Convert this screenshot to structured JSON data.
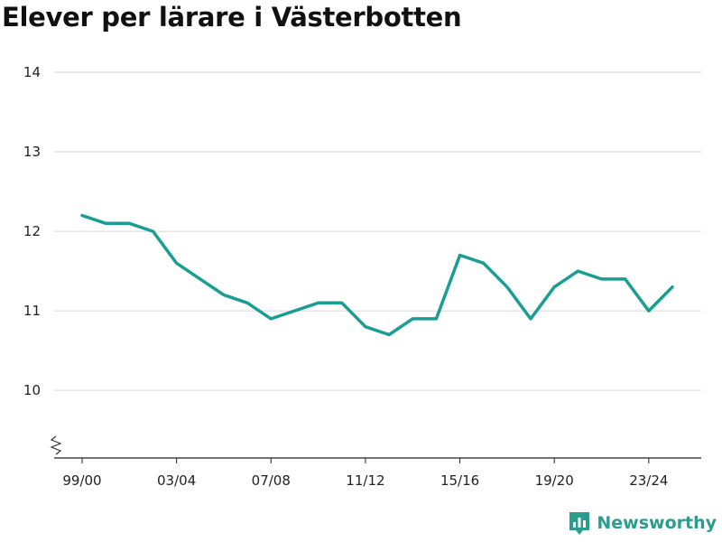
{
  "title": "Elever per lärare i Västerbotten",
  "brand": {
    "name": "Newsworthy",
    "icon": "bar-chart-logo-icon",
    "color": "#2a9d8f"
  },
  "chart_data": {
    "type": "line",
    "title": "Elever per lärare i Västerbotten",
    "xlabel": "",
    "ylabel": "",
    "x": [
      "99/00",
      "00/01",
      "01/02",
      "02/03",
      "03/04",
      "04/05",
      "05/06",
      "06/07",
      "07/08",
      "08/09",
      "09/10",
      "10/11",
      "11/12",
      "12/13",
      "13/14",
      "14/15",
      "15/16",
      "16/17",
      "17/18",
      "18/19",
      "19/20",
      "20/21",
      "21/22",
      "22/23",
      "23/24",
      "24/25"
    ],
    "x_tick_labels": [
      "99/00",
      "03/04",
      "07/08",
      "11/12",
      "15/16",
      "19/20",
      "23/24"
    ],
    "series": [
      {
        "values": [
          12.2,
          12.1,
          12.1,
          12.0,
          11.6,
          11.4,
          11.2,
          11.1,
          10.9,
          11.0,
          11.1,
          11.1,
          10.8,
          10.7,
          10.9,
          10.9,
          11.7,
          11.6,
          11.3,
          10.9,
          11.3,
          11.5,
          11.4,
          11.4,
          11.0,
          11.3
        ],
        "color": "#1a9e93"
      }
    ],
    "y_ticks": [
      10,
      11,
      12,
      13,
      14
    ],
    "ylim": [
      9.15,
      14
    ],
    "y_axis_break": true,
    "grid": true,
    "legend": "none"
  }
}
